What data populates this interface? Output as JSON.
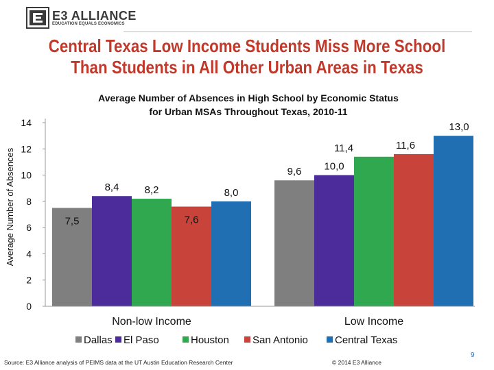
{
  "header": {
    "logo_name": "E3 ALLIANCE",
    "logo_tagline": "EDUCATION EQUALS ECONOMICS",
    "title": "Central Texas Low Income Students Miss More School Than Students in All Other Urban Areas in Texas"
  },
  "chart_data": {
    "type": "bar",
    "title": "Average Number of Absences in High School by Economic Status for Urban MSAs Throughout Texas, 2010-11",
    "xlabel": "",
    "ylabel": "Average Number of Absences",
    "ylim": [
      0,
      14
    ],
    "yticks": [
      0,
      2,
      4,
      6,
      8,
      10,
      12,
      14
    ],
    "categories": [
      "Non-low Income",
      "Low Income"
    ],
    "series": [
      {
        "name": "Dallas",
        "color": "#7f7f7f",
        "values": [
          7.5,
          9.6
        ],
        "labels": [
          "7,5",
          "9,6"
        ]
      },
      {
        "name": "El Paso",
        "color": "#4b2c9a",
        "values": [
          8.4,
          10.0
        ],
        "labels": [
          "8,4",
          "10,0"
        ]
      },
      {
        "name": "Houston",
        "color": "#2fa84f",
        "values": [
          8.2,
          11.4
        ],
        "labels": [
          "8,2",
          "11,4"
        ]
      },
      {
        "name": "San Antonio",
        "color": "#c8443a",
        "values": [
          7.6,
          11.6
        ],
        "labels": [
          "7,6",
          "11,6"
        ]
      },
      {
        "name": "Central Texas",
        "color": "#1f6fb2",
        "values": [
          8.0,
          13.0
        ],
        "labels": [
          "8,0",
          "13,0"
        ]
      }
    ],
    "legend_position": "bottom",
    "grid": false
  },
  "footer": {
    "source": "Source: E3 Alliance analysis of PEIMS data at the UT Austin Education Research Center",
    "copyright": "© 2014 E3 Alliance",
    "page_number": "9"
  }
}
